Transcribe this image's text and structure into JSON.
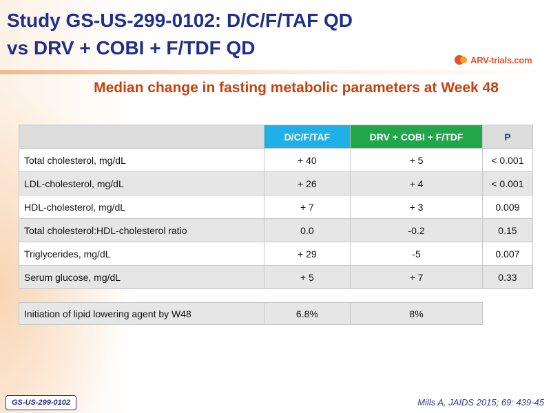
{
  "title": {
    "line1": "Study GS-US-299-0102: D/C/F/TAF QD",
    "line2": "vs DRV + COBI + F/TDF QD"
  },
  "logo": {
    "text": "ARV-trials.com"
  },
  "subtitle": "Median change in fasting metabolic parameters at Week 48",
  "table": {
    "headers": {
      "label": "",
      "arm_a": "D/C/F/TAF",
      "arm_b": "DRV + COBI + F/TDF",
      "p": "P"
    },
    "rows": [
      {
        "label": "Total cholesterol, mg/dL",
        "arm_a": "+ 40",
        "arm_b": "+ 5",
        "p": "< 0.001"
      },
      {
        "label": "LDL-cholesterol, mg/dL",
        "arm_a": "+ 26",
        "arm_b": "+ 4",
        "p": "< 0.001"
      },
      {
        "label": "HDL-cholesterol, mg/dL",
        "arm_a": "+ 7",
        "arm_b": "+ 3",
        "p": "0.009"
      },
      {
        "label": "Total cholesterol:HDL-cholesterol ratio",
        "arm_a": "0.0",
        "arm_b": "-0.2",
        "p": "0.15"
      },
      {
        "label": "Triglycerides, mg/dL",
        "arm_a": "+ 29",
        "arm_b": "-5",
        "p": "0.007"
      },
      {
        "label": "Serum glucose, mg/dL",
        "arm_a": "+ 5",
        "arm_b": "+ 7",
        "p": "0.33"
      }
    ]
  },
  "lipid_row": {
    "label": "Initiation of lipid lowering agent by W48",
    "arm_a": "6.8%",
    "arm_b": "8%"
  },
  "footer": {
    "study_tag": "GS-US-299-0102",
    "citation": "Mills A, JAIDS 2015; 69: 439-45"
  },
  "colors": {
    "title": "#1f2f8a",
    "subtitle": "#c8410e",
    "arm_a_header": "#1fb0e8",
    "arm_b_header": "#22a64a"
  }
}
